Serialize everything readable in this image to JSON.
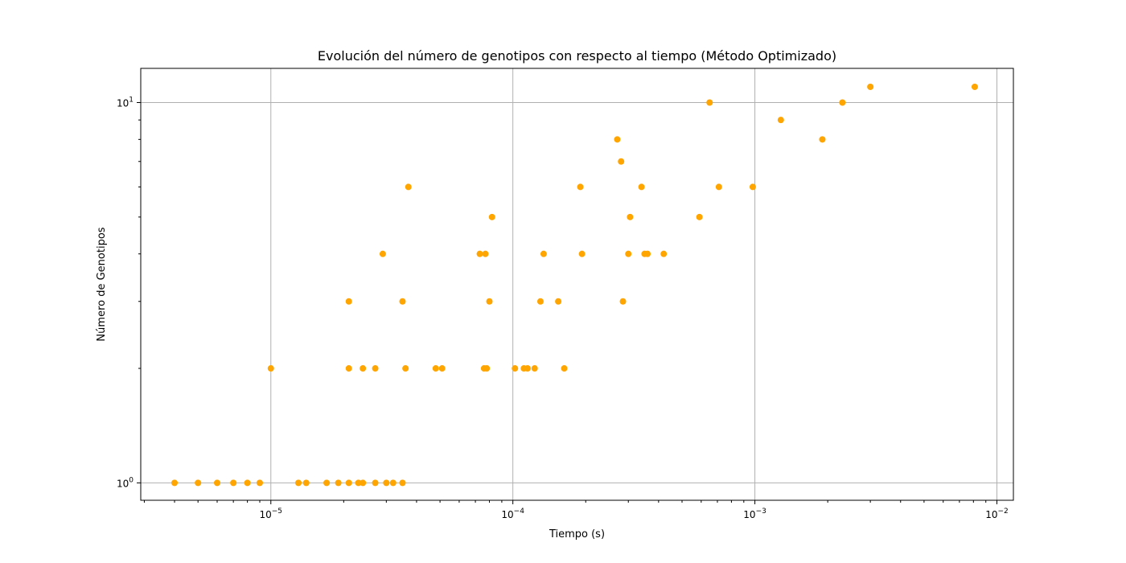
{
  "chart_data": {
    "type": "scatter",
    "title": "Evolución del número de genotipos con respecto al tiempo (Método Optimizado)",
    "xlabel": "Tiempo (s)",
    "ylabel": "Número de Genotipos",
    "xscale": "log",
    "yscale": "log",
    "xlim": [
      2.9e-06,
      0.0117
    ],
    "ylim": [
      0.9,
      12.3
    ],
    "x_ticks": [
      {
        "value": 1e-05,
        "base": "10",
        "exp": "−5"
      },
      {
        "value": 0.0001,
        "base": "10",
        "exp": "−4"
      },
      {
        "value": 0.001,
        "base": "10",
        "exp": "−3"
      },
      {
        "value": 0.01,
        "base": "10",
        "exp": "−2"
      }
    ],
    "y_ticks": [
      {
        "value": 1,
        "base": "10",
        "exp": "0"
      },
      {
        "value": 10,
        "base": "10",
        "exp": "1"
      }
    ],
    "grid": true,
    "marker_color": "#FFA500",
    "x": [
      4e-06,
      5e-06,
      6e-06,
      7e-06,
      8e-06,
      9e-06,
      1.3e-05,
      1.4e-05,
      1.7e-05,
      1.9e-05,
      2.1e-05,
      2.3e-05,
      2.4e-05,
      2.7e-05,
      3e-05,
      3.2e-05,
      3.5e-05,
      1e-05,
      2.1e-05,
      2.4e-05,
      2.7e-05,
      3.6e-05,
      4.8e-05,
      5.1e-05,
      7.6e-05,
      7.8e-05,
      0.000102,
      0.000111,
      0.000115,
      0.000123,
      0.000163,
      2.1e-05,
      3.5e-05,
      8e-05,
      0.00013,
      0.000154,
      0.000285,
      2.9e-05,
      7.3e-05,
      7.7e-05,
      0.000134,
      0.000193,
      0.0003,
      0.00035,
      0.00036,
      0.00042,
      8.2e-05,
      0.000305,
      0.00059,
      3.7e-05,
      0.00019,
      0.00034,
      0.00071,
      0.00098,
      0.00028,
      0.00027,
      0.0019,
      0.00128,
      0.00065,
      0.0023,
      0.003,
      0.0081
    ],
    "y": [
      1,
      1,
      1,
      1,
      1,
      1,
      1,
      1,
      1,
      1,
      1,
      1,
      1,
      1,
      1,
      1,
      1,
      2,
      2,
      2,
      2,
      2,
      2,
      2,
      2,
      2,
      2,
      2,
      2,
      2,
      2,
      3,
      3,
      3,
      3,
      3,
      3,
      4,
      4,
      4,
      4,
      4,
      4,
      4,
      4,
      4,
      5,
      5,
      5,
      6,
      6,
      6,
      6,
      6,
      7,
      8,
      8,
      9,
      10,
      10,
      11,
      11
    ]
  }
}
